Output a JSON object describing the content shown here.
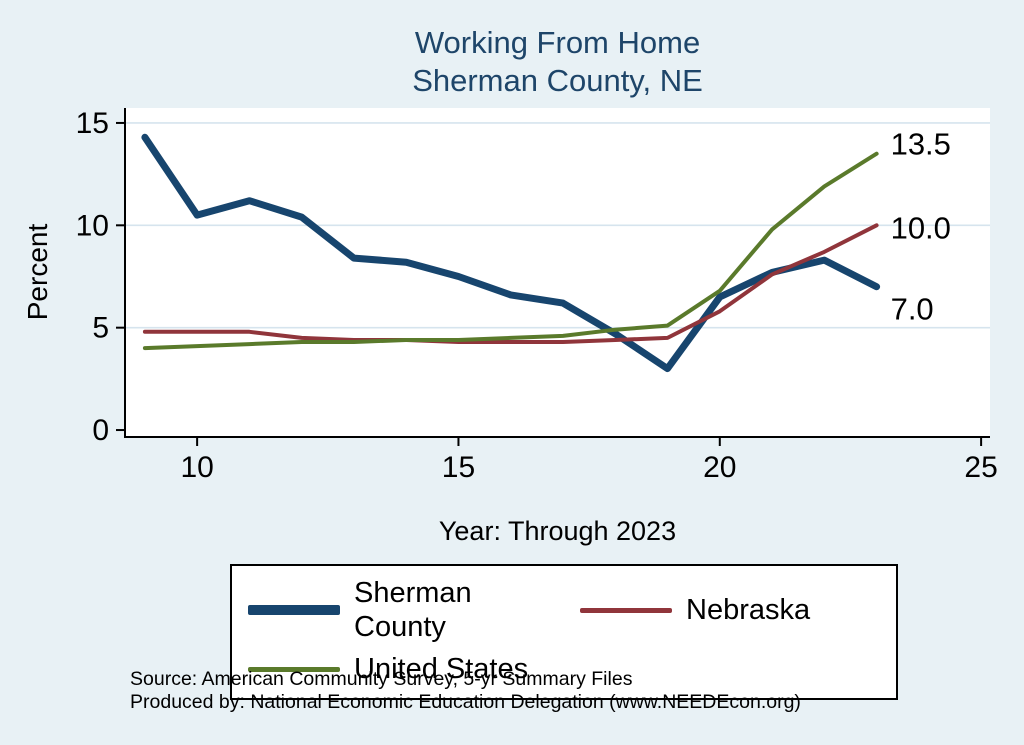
{
  "chart_data": {
    "type": "line",
    "title_line1": "Working From Home",
    "title_line2": "Sherman County, NE",
    "xlabel": "Year: Through 2023",
    "ylabel": "Percent",
    "x": [
      9,
      10,
      11,
      12,
      13,
      14,
      15,
      16,
      17,
      18,
      19,
      20,
      21,
      22,
      23
    ],
    "x_ticks": [
      10,
      15,
      20,
      25
    ],
    "y_ticks": [
      0,
      5,
      10,
      15
    ],
    "xlim": [
      8.62,
      25.17
    ],
    "ylim": [
      -0.34,
      15.73
    ],
    "grid": true,
    "legend_position": "bottom",
    "series": [
      {
        "name": "Sherman County",
        "color": "#17456e",
        "width": 7,
        "values": [
          14.3,
          10.5,
          11.2,
          10.4,
          8.4,
          8.2,
          7.5,
          6.6,
          6.2,
          4.7,
          3.0,
          6.5,
          7.7,
          8.3,
          7.0
        ]
      },
      {
        "name": "Nebraska",
        "color": "#90353b",
        "width": 4,
        "values": [
          4.8,
          4.8,
          4.8,
          4.5,
          4.4,
          4.4,
          4.3,
          4.3,
          4.3,
          4.4,
          4.5,
          5.8,
          7.6,
          8.7,
          10.0
        ]
      },
      {
        "name": "United States",
        "color": "#5a7a2b",
        "width": 4,
        "values": [
          4.0,
          4.1,
          4.2,
          4.3,
          4.3,
          4.4,
          4.4,
          4.5,
          4.6,
          4.9,
          5.1,
          6.8,
          9.8,
          11.9,
          13.5
        ]
      }
    ],
    "end_labels": [
      {
        "text": "13.5",
        "value": 13.5,
        "dy": -10
      },
      {
        "text": "10.0",
        "value": 10.0,
        "dy": 2
      },
      {
        "text": "7.0",
        "value": 7.0,
        "dy": 22
      }
    ]
  },
  "notes": {
    "source": "Source: American Community Survey, 5-yr Summary Files",
    "produced_by": "Produced by: National Economic Education Delegation (www.NEEDEcon.org)"
  },
  "colors": {
    "background": "#e8f1f5",
    "plot_background": "#ffffff",
    "grid": "#d6e4ee",
    "axis": "#000000",
    "title": "#1e4569"
  }
}
